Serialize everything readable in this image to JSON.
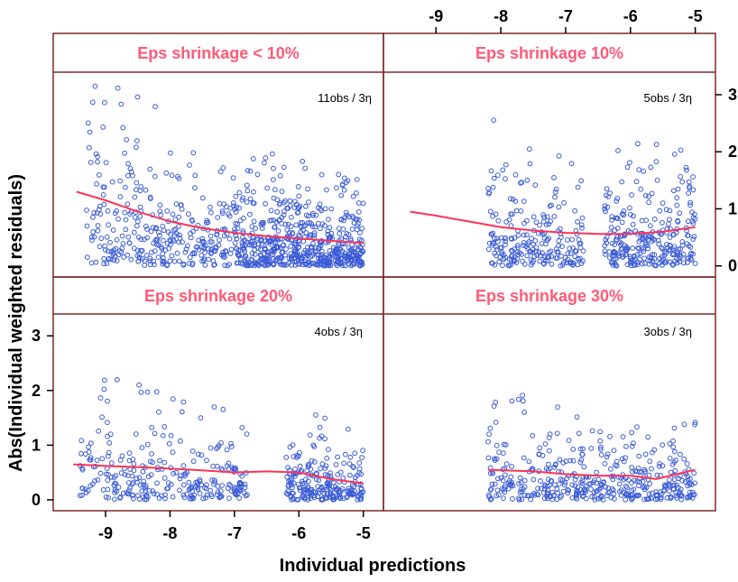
{
  "figure": {
    "xlabel": "Individual predictions",
    "ylabel": "Abs(Individual  weighted residuals)"
  },
  "colors": {
    "point": "#3a5bd6",
    "smooth": "#ff3355",
    "strip_text": "#ff5a78",
    "frame": "#7a2a2a"
  },
  "chart_data": [
    {
      "type": "scatter",
      "panel": "top-left",
      "title": "Eps shrinkage < 10%",
      "annotation": "11obs / 3η",
      "xlim": [
        -9.7,
        -4.8
      ],
      "ylim": [
        -0.1,
        3.3
      ],
      "xticks": [],
      "yticks": [],
      "seed": 11,
      "n": 900,
      "clusters": [
        {
          "xmin": -9.3,
          "xmax": -7.0,
          "frac": 0.35
        },
        {
          "xmin": -7.0,
          "xmax": -5.0,
          "frac": 0.65
        }
      ],
      "smooth": {
        "x": [
          -9.45,
          -9.0,
          -8.5,
          -8.0,
          -7.5,
          -7.0,
          -6.5,
          -6.0,
          -5.5,
          -5.0
        ],
        "y": [
          1.3,
          1.15,
          0.95,
          0.78,
          0.66,
          0.58,
          0.52,
          0.48,
          0.44,
          0.4
        ]
      }
    },
    {
      "type": "scatter",
      "panel": "top-right",
      "title": "Eps shrinkage 10%",
      "annotation": "5obs / 3η",
      "xlim": [
        -9.7,
        -4.8
      ],
      "ylim": [
        -0.1,
        3.3
      ],
      "xticks": [
        -9,
        -8,
        -7,
        -6,
        -5
      ],
      "yticks": [
        0,
        1,
        2,
        3
      ],
      "seed": 5,
      "n": 500,
      "clusters": [
        {
          "xmin": -8.2,
          "xmax": -6.7,
          "frac": 0.45
        },
        {
          "xmin": -6.4,
          "xmax": -5.0,
          "frac": 0.55
        }
      ],
      "smooth": {
        "x": [
          -9.4,
          -9.0,
          -8.5,
          -8.0,
          -7.5,
          -7.0,
          -6.5,
          -6.0,
          -5.5,
          -5.0
        ],
        "y": [
          0.95,
          0.88,
          0.78,
          0.68,
          0.62,
          0.58,
          0.56,
          0.56,
          0.6,
          0.68
        ]
      }
    },
    {
      "type": "scatter",
      "panel": "bottom-left",
      "title": "Eps shrinkage 20%",
      "annotation": "4obs / 3η",
      "xlim": [
        -9.7,
        -4.8
      ],
      "ylim": [
        -0.1,
        3.3
      ],
      "xticks": [
        -9,
        -8,
        -7,
        -6,
        -5
      ],
      "yticks": [
        0,
        1,
        2,
        3
      ],
      "seed": 4,
      "n": 500,
      "clusters": [
        {
          "xmin": -9.4,
          "xmax": -6.8,
          "frac": 0.55
        },
        {
          "xmin": -6.2,
          "xmax": -5.0,
          "frac": 0.45
        }
      ],
      "smooth": {
        "x": [
          -9.5,
          -9.0,
          -8.5,
          -8.0,
          -7.5,
          -7.0,
          -6.5,
          -6.0,
          -5.5,
          -5.0
        ],
        "y": [
          0.65,
          0.62,
          0.6,
          0.57,
          0.54,
          0.5,
          0.52,
          0.5,
          0.38,
          0.3
        ]
      }
    },
    {
      "type": "scatter",
      "panel": "bottom-right",
      "title": "Eps shrinkage 30%",
      "annotation": "3obs / 3η",
      "xlim": [
        -9.7,
        -4.8
      ],
      "ylim": [
        -0.1,
        3.3
      ],
      "xticks": [],
      "yticks": [],
      "seed": 3,
      "n": 420,
      "clusters": [
        {
          "xmin": -8.2,
          "xmax": -5.0,
          "frac": 1.0
        }
      ],
      "smooth": {
        "x": [
          -8.2,
          -7.5,
          -7.0,
          -6.5,
          -6.0,
          -5.6,
          -5.0
        ],
        "y": [
          0.55,
          0.52,
          0.47,
          0.44,
          0.44,
          0.38,
          0.55
        ]
      }
    }
  ]
}
